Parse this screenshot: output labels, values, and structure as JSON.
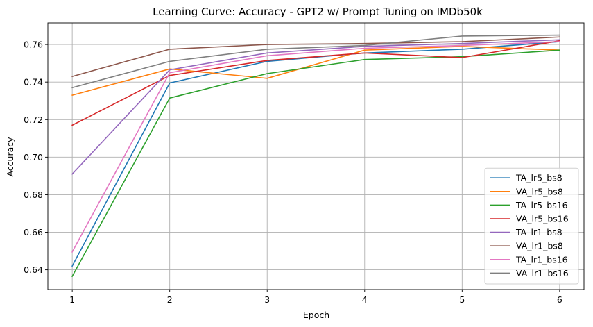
{
  "chart_data": {
    "type": "line",
    "title": "Learning Curve: Accuracy - GPT2 w/ Prompt Tuning on IMDb50k",
    "xlabel": "Epoch",
    "ylabel": "Accuracy",
    "x": [
      1,
      2,
      3,
      4,
      5,
      6
    ],
    "xticks": [
      "1",
      "2",
      "3",
      "4",
      "5",
      "6"
    ],
    "yticks": [
      "0.64",
      "0.66",
      "0.68",
      "0.70",
      "0.72",
      "0.74",
      "0.76"
    ],
    "xlim": [
      0.75,
      6.25
    ],
    "ylim": [
      0.6295,
      0.7715
    ],
    "grid": true,
    "legend_position": "lower-right",
    "series": [
      {
        "name": "TA_lr5_bs8",
        "color": "#1f77b4",
        "values": [
          0.642,
          0.7395,
          0.751,
          0.7555,
          0.7575,
          0.7615
        ]
      },
      {
        "name": "VA_lr5_bs8",
        "color": "#ff7f0e",
        "values": [
          0.733,
          0.747,
          0.742,
          0.757,
          0.759,
          0.757
        ]
      },
      {
        "name": "TA_lr5_bs16",
        "color": "#2ca02c",
        "values": [
          0.6365,
          0.7315,
          0.7445,
          0.752,
          0.7535,
          0.757
        ]
      },
      {
        "name": "VA_lr5_bs16",
        "color": "#d62728",
        "values": [
          0.717,
          0.7435,
          0.7515,
          0.7555,
          0.753,
          0.762
        ]
      },
      {
        "name": "TA_lr1_bs8",
        "color": "#9467bd",
        "values": [
          0.691,
          0.7465,
          0.7555,
          0.759,
          0.7605,
          0.7625
        ]
      },
      {
        "name": "VA_lr1_bs8",
        "color": "#8c564b",
        "values": [
          0.743,
          0.7575,
          0.76,
          0.7605,
          0.7615,
          0.764
        ]
      },
      {
        "name": "TA_lr1_bs16",
        "color": "#e377c2",
        "values": [
          0.6495,
          0.745,
          0.754,
          0.758,
          0.7595,
          0.7615
        ]
      },
      {
        "name": "VA_lr1_bs16",
        "color": "#7f7f7f",
        "values": [
          0.737,
          0.751,
          0.7575,
          0.7595,
          0.7645,
          0.765
        ]
      }
    ]
  }
}
